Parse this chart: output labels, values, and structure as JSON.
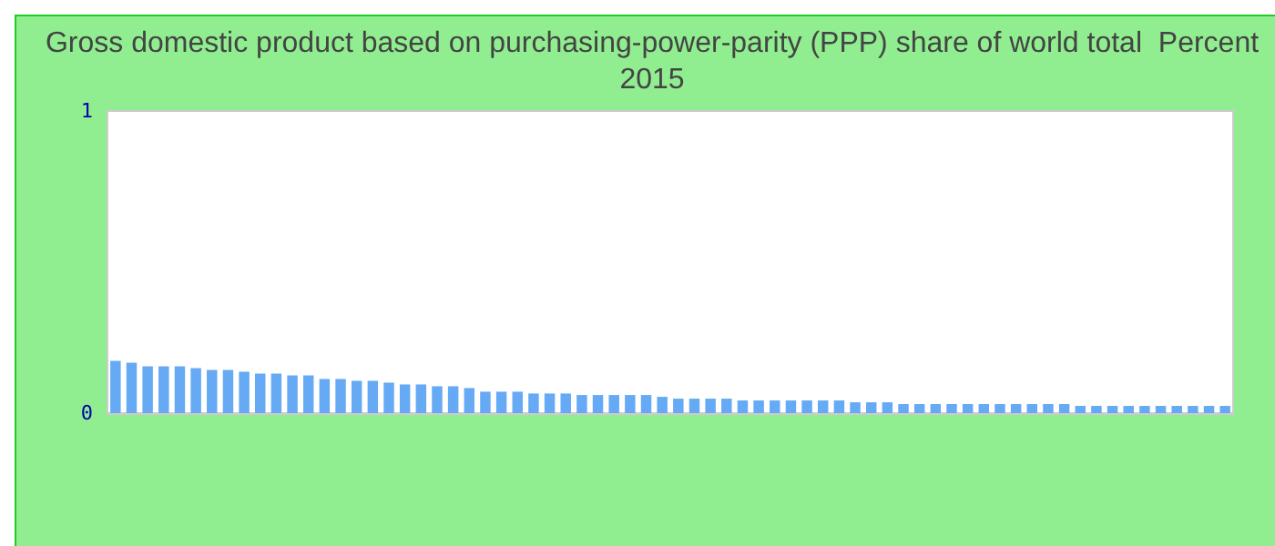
{
  "chart_data": {
    "type": "bar",
    "title": "Gross domestic product based on purchasing-power-parity (PPP) share of world total  Percent",
    "subtitle": "2015",
    "categories": [
      null,
      null,
      null,
      null,
      null,
      null,
      null,
      null,
      null,
      null,
      null,
      null,
      null,
      null,
      null,
      null,
      null,
      null,
      null,
      null,
      null,
      null,
      null,
      null,
      null,
      null,
      null,
      null,
      null,
      null,
      null,
      null,
      null,
      null,
      null,
      null,
      null,
      null,
      null,
      null,
      null,
      null,
      null,
      null,
      null,
      null,
      null,
      null,
      null,
      null,
      null,
      null,
      null,
      null,
      null,
      null,
      null,
      null,
      null,
      null,
      null,
      null,
      null,
      null,
      null,
      null,
      null,
      null,
      null,
      null
    ],
    "values": [
      0.173,
      0.167,
      0.155,
      0.155,
      0.155,
      0.149,
      0.143,
      0.143,
      0.137,
      0.131,
      0.131,
      0.125,
      0.125,
      0.113,
      0.113,
      0.107,
      0.107,
      0.101,
      0.095,
      0.095,
      0.089,
      0.089,
      0.083,
      0.071,
      0.071,
      0.071,
      0.065,
      0.065,
      0.065,
      0.06,
      0.06,
      0.06,
      0.06,
      0.06,
      0.054,
      0.048,
      0.048,
      0.048,
      0.048,
      0.042,
      0.042,
      0.042,
      0.042,
      0.042,
      0.042,
      0.042,
      0.036,
      0.036,
      0.036,
      0.03,
      0.03,
      0.03,
      0.03,
      0.03,
      0.03,
      0.03,
      0.03,
      0.03,
      0.03,
      0.03,
      0.024,
      0.024,
      0.024,
      0.024,
      0.024,
      0.024,
      0.024,
      0.024,
      0.024,
      0.024
    ],
    "color": "#66aaf5",
    "ylim": [
      0,
      1
    ],
    "yticks": [
      0,
      1
    ],
    "grid": false
  }
}
